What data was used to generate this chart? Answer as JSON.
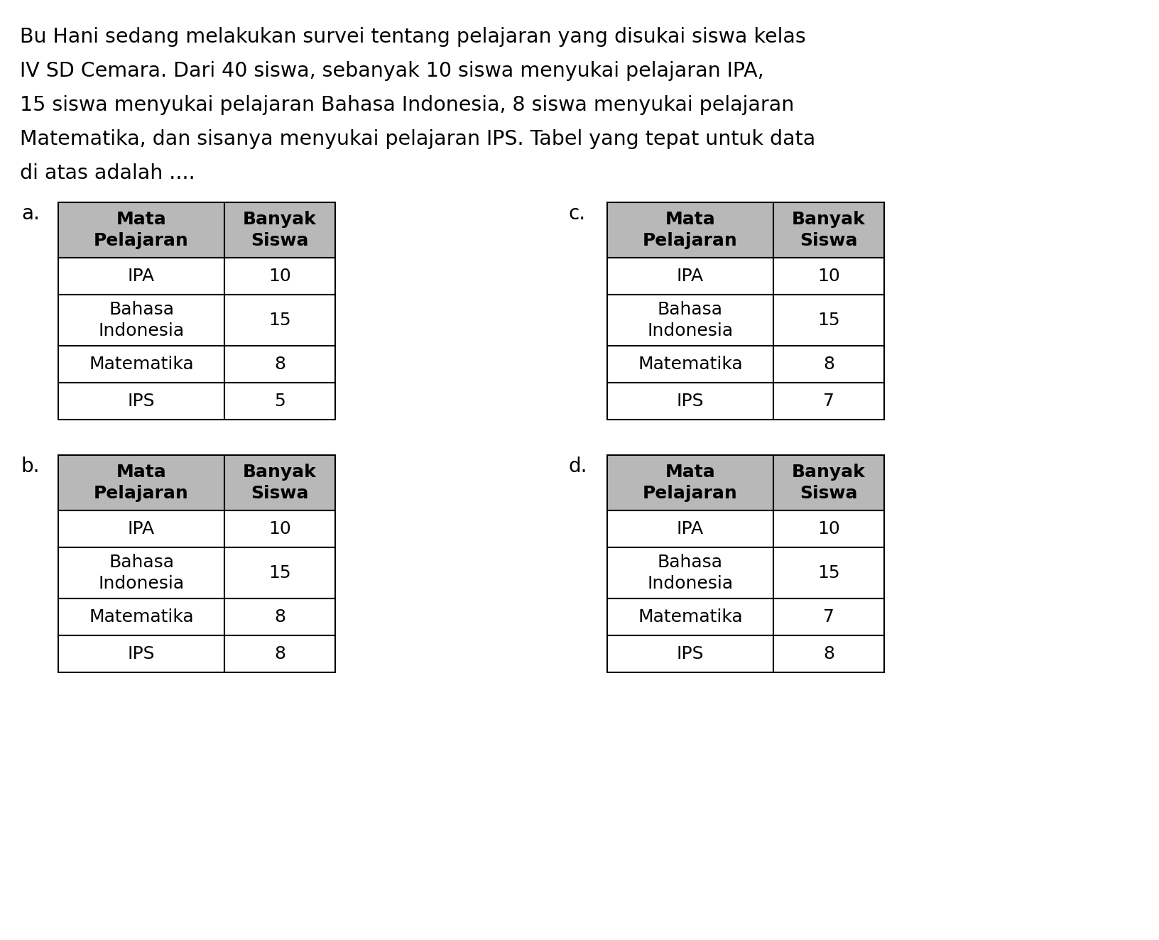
{
  "question_text_lines": [
    "Bu Hani sedang melakukan survei tentang pelajaran yang disukai siswa kelas",
    "IV SD Cemara. Dari 40 siswa, sebanyak 10 siswa menyukai pelajaran IPA,",
    "15 siswa menyukai pelajaran Bahasa Indonesia, 8 siswa menyukai pelajaran",
    "Matematika, dan sisanya menyukai pelajaran IPS. Tabel yang tepat untuk data",
    "di atas adalah ...."
  ],
  "background_color": "#ffffff",
  "header_bg_color": "#b8b8b8",
  "table_border_color": "#000000",
  "tables": [
    {
      "label": "a.",
      "col1_header": "Mata\nPelajaran",
      "col2_header": "Banyak\nSiswa",
      "rows": [
        [
          "IPA",
          "10"
        ],
        [
          "Bahasa\nIndonesia",
          "15"
        ],
        [
          "Matematika",
          "8"
        ],
        [
          "IPS",
          "5"
        ]
      ]
    },
    {
      "label": "c.",
      "col1_header": "Mata\nPelajaran",
      "col2_header": "Banyak\nSiswa",
      "rows": [
        [
          "IPA",
          "10"
        ],
        [
          "Bahasa\nIndonesia",
          "15"
        ],
        [
          "Matematika",
          "8"
        ],
        [
          "IPS",
          "7"
        ]
      ]
    },
    {
      "label": "b.",
      "col1_header": "Mata\nPelajaran",
      "col2_header": "Banyak\nSiswa",
      "rows": [
        [
          "IPA",
          "10"
        ],
        [
          "Bahasa\nIndonesia",
          "15"
        ],
        [
          "Matematika",
          "8"
        ],
        [
          "IPS",
          "8"
        ]
      ]
    },
    {
      "label": "d.",
      "col1_header": "Mata\nPelajaran",
      "col2_header": "Banyak\nSiswa",
      "rows": [
        [
          "IPA",
          "10"
        ],
        [
          "Bahasa\nIndonesia",
          "15"
        ],
        [
          "Matematika",
          "7"
        ],
        [
          "IPS",
          "8"
        ]
      ]
    }
  ],
  "text_fontsize": 20.5,
  "table_fontsize": 18,
  "label_fontsize": 20,
  "header_fontsize": 18
}
